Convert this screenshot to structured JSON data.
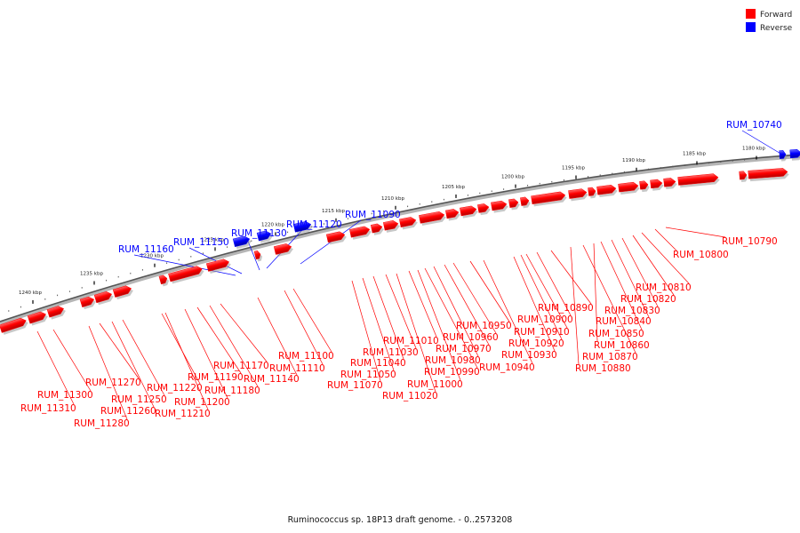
{
  "legend": {
    "forward_label": "Forward",
    "reverse_label": "Reverse",
    "forward_color": "#ff0000",
    "reverse_color": "#0000ff"
  },
  "footer": {
    "caption": "Ruminococcus sp. 18P13 draft genome. - 0..2573208"
  },
  "kbp_ticks": [
    "1180 kbp",
    "1185 kbp",
    "1190 kbp",
    "1195 kbp",
    "1200 kbp",
    "1205 kbp",
    "1210 kbp",
    "1215 kbp",
    "1220 kbp",
    "1225 kbp",
    "1230 kbp",
    "1235 kbp",
    "1240 kbp"
  ],
  "reverse_labels": [
    "RUM_10740",
    "RUM_11090",
    "RUM_11120",
    "RUM_11130",
    "RUM_11150",
    "RUM_11160"
  ],
  "forward_labels": [
    "RUM_10790",
    "RUM_10800",
    "RUM_10810",
    "RUM_10820",
    "RUM_10830",
    "RUM_10840",
    "RUM_10850",
    "RUM_10860",
    "RUM_10870",
    "RUM_10880",
    "RUM_10890",
    "RUM_10900",
    "RUM_10910",
    "RUM_10920",
    "RUM_10930",
    "RUM_10940",
    "RUM_10950",
    "RUM_10960",
    "RUM_10970",
    "RUM_10980",
    "RUM_10990",
    "RUM_11000",
    "RUM_11010",
    "RUM_11020",
    "RUM_11030",
    "RUM_11040",
    "RUM_11050",
    "RUM_11070",
    "RUM_11100",
    "RUM_11110",
    "RUM_11140",
    "RUM_11170",
    "RUM_11180",
    "RUM_11190",
    "RUM_11200",
    "RUM_11210",
    "RUM_11220",
    "RUM_11250",
    "RUM_11260",
    "RUM_11270",
    "RUM_11280",
    "RUM_11300",
    "RUM_11310"
  ]
}
